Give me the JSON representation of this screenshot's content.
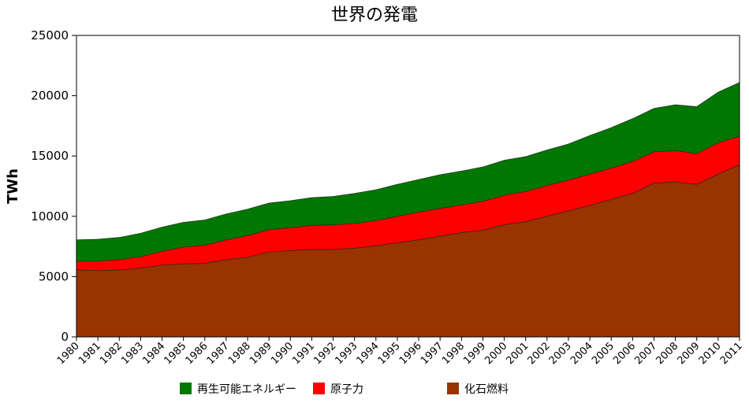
{
  "chart_data": {
    "type": "area",
    "stacked": true,
    "title": "世界の発電",
    "xlabel": "",
    "ylabel": "TWh",
    "ylim": [
      0,
      25000
    ],
    "yticks": [
      0,
      5000,
      10000,
      15000,
      20000,
      25000
    ],
    "grid": false,
    "legend_position": "bottom",
    "x": [
      "1980",
      "1981",
      "1982",
      "1983",
      "1984",
      "1985",
      "1986",
      "1987",
      "1988",
      "1989",
      "1990",
      "1991",
      "1992",
      "1993",
      "1994",
      "1995",
      "1996",
      "1997",
      "1998",
      "1999",
      "2000",
      "2001",
      "2002",
      "2003",
      "2004",
      "2005",
      "2006",
      "2007",
      "2008",
      "2009",
      "2010",
      "2011"
    ],
    "series": [
      {
        "name": "化石燃料",
        "color": "#993300",
        "values": [
          5550,
          5500,
          5550,
          5700,
          5950,
          6050,
          6100,
          6400,
          6600,
          7050,
          7150,
          7250,
          7250,
          7350,
          7550,
          7800,
          8050,
          8350,
          8650,
          8850,
          9300,
          9550,
          10000,
          10450,
          10900,
          11400,
          11900,
          12750,
          12850,
          12650,
          13500,
          14250
        ]
      },
      {
        "name": "原子力",
        "color": "#ff0000",
        "values": [
          700,
          800,
          850,
          950,
          1150,
          1400,
          1500,
          1650,
          1800,
          1850,
          1900,
          2000,
          2050,
          2050,
          2100,
          2200,
          2300,
          2300,
          2300,
          2400,
          2450,
          2500,
          2550,
          2550,
          2600,
          2600,
          2650,
          2600,
          2600,
          2550,
          2600,
          2400
        ]
      },
      {
        "name": "再生可能エネルギー",
        "color": "#007700",
        "values": [
          1800,
          1800,
          1850,
          1950,
          2000,
          2050,
          2100,
          2150,
          2200,
          2200,
          2250,
          2300,
          2350,
          2500,
          2550,
          2650,
          2700,
          2800,
          2800,
          2850,
          2900,
          2900,
          2950,
          3000,
          3200,
          3350,
          3550,
          3600,
          3800,
          3900,
          4200,
          4450
        ]
      }
    ],
    "legend": [
      {
        "name": "再生可能エネルギー",
        "color": "#007700"
      },
      {
        "name": "原子力",
        "color": "#ff0000"
      },
      {
        "name": "化石燃料",
        "color": "#993300"
      }
    ]
  }
}
